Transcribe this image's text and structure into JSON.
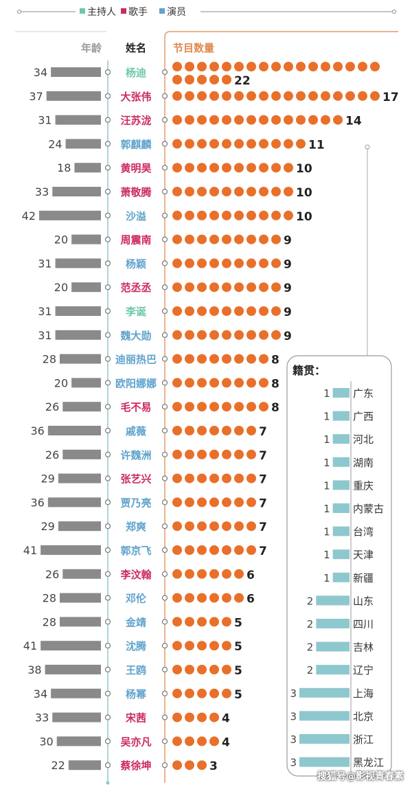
{
  "legend": [
    {
      "label": "主持人",
      "role": "host"
    },
    {
      "label": "歌手",
      "role": "singer"
    },
    {
      "label": "演员",
      "role": "actor"
    }
  ],
  "colors": {
    "host": "#6cc9a8",
    "singer": "#cc2a64",
    "actor": "#5fa3cc",
    "age_bar": "#8a8a8a",
    "dot": "#e8702a",
    "province_bar": "#8ec8cf",
    "header_orange": "#e08a50",
    "header_gray": "#999999",
    "axis": "#8ec8cf",
    "axis_orange": "#e39a6a"
  },
  "headers": {
    "age": "年龄",
    "name": "姓名",
    "count": "节目数量"
  },
  "chart_data": {
    "type": "bar",
    "series": [
      {
        "name": "年龄"
      },
      {
        "name": "节目数量"
      }
    ],
    "rows": [
      {
        "name": "杨迪",
        "role": "host",
        "age": 34,
        "programs": 22
      },
      {
        "name": "大张伟",
        "role": "singer",
        "age": 37,
        "programs": 17
      },
      {
        "name": "汪苏泷",
        "role": "singer",
        "age": 31,
        "programs": 14
      },
      {
        "name": "郭麒麟",
        "role": "actor",
        "age": 24,
        "programs": 11
      },
      {
        "name": "黄明昊",
        "role": "singer",
        "age": 18,
        "programs": 10
      },
      {
        "name": "萧敬腾",
        "role": "singer",
        "age": 33,
        "programs": 10
      },
      {
        "name": "沙溢",
        "role": "actor",
        "age": 42,
        "programs": 10
      },
      {
        "name": "周震南",
        "role": "singer",
        "age": 20,
        "programs": 9
      },
      {
        "name": "杨颖",
        "role": "actor",
        "age": 31,
        "programs": 9
      },
      {
        "name": "范丞丞",
        "role": "singer",
        "age": 20,
        "programs": 9
      },
      {
        "name": "李诞",
        "role": "host",
        "age": 31,
        "programs": 9
      },
      {
        "name": "魏大勋",
        "role": "actor",
        "age": 31,
        "programs": 9
      },
      {
        "name": "迪丽热巴",
        "role": "actor",
        "age": 28,
        "programs": 8
      },
      {
        "name": "欧阳娜娜",
        "role": "actor",
        "age": 20,
        "programs": 8
      },
      {
        "name": "毛不易",
        "role": "singer",
        "age": 26,
        "programs": 8
      },
      {
        "name": "戚薇",
        "role": "actor",
        "age": 36,
        "programs": 7
      },
      {
        "name": "许魏洲",
        "role": "actor",
        "age": 26,
        "programs": 7
      },
      {
        "name": "张艺兴",
        "role": "singer",
        "age": 29,
        "programs": 7
      },
      {
        "name": "贾乃亮",
        "role": "actor",
        "age": 36,
        "programs": 7
      },
      {
        "name": "郑爽",
        "role": "actor",
        "age": 29,
        "programs": 7
      },
      {
        "name": "郭京飞",
        "role": "actor",
        "age": 41,
        "programs": 7
      },
      {
        "name": "李汶翰",
        "role": "singer",
        "age": 26,
        "programs": 6
      },
      {
        "name": "邓伦",
        "role": "actor",
        "age": 28,
        "programs": 6
      },
      {
        "name": "金靖",
        "role": "actor",
        "age": 28,
        "programs": 5
      },
      {
        "name": "沈腾",
        "role": "actor",
        "age": 41,
        "programs": 5
      },
      {
        "name": "王鸥",
        "role": "actor",
        "age": 38,
        "programs": 5
      },
      {
        "name": "杨幂",
        "role": "actor",
        "age": 34,
        "programs": 5
      },
      {
        "name": "宋茜",
        "role": "singer",
        "age": 33,
        "programs": 4
      },
      {
        "name": "吴亦凡",
        "role": "singer",
        "age": 30,
        "programs": 4
      },
      {
        "name": "蔡徐坤",
        "role": "singer",
        "age": 22,
        "programs": 3
      }
    ],
    "hometown": {
      "title": "籍贯：",
      "items": [
        {
          "province": "广东",
          "count": 1
        },
        {
          "province": "广西",
          "count": 1
        },
        {
          "province": "河北",
          "count": 1
        },
        {
          "province": "湖南",
          "count": 1
        },
        {
          "province": "重庆",
          "count": 1
        },
        {
          "province": "内蒙古",
          "count": 1
        },
        {
          "province": "台湾",
          "count": 1
        },
        {
          "province": "天津",
          "count": 1
        },
        {
          "province": "新疆",
          "count": 1
        },
        {
          "province": "山东",
          "count": 2
        },
        {
          "province": "四川",
          "count": 2
        },
        {
          "province": "吉林",
          "count": 2
        },
        {
          "province": "辽宁",
          "count": 2
        },
        {
          "province": "上海",
          "count": 3
        },
        {
          "province": "北京",
          "count": 3
        },
        {
          "province": "浙江",
          "count": 3
        },
        {
          "province": "黑龙江",
          "count": 3
        }
      ]
    }
  },
  "watermark": "搜狐号@影视青春素"
}
